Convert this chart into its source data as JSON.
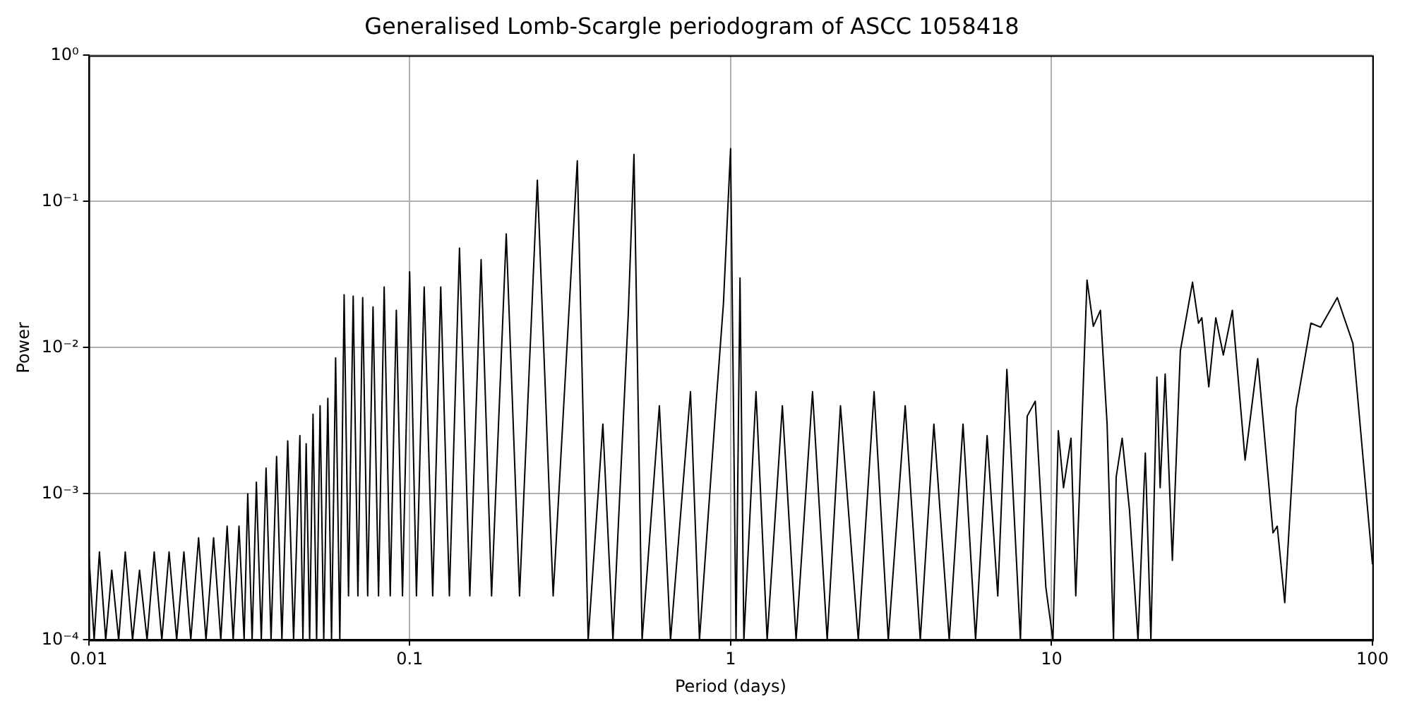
{
  "chart_data": {
    "type": "line",
    "title": "Generalised Lomb-Scargle periodogram of ASCC 1058418",
    "xlabel": "Period (days)",
    "ylabel": "Power",
    "log": "xy",
    "grid": true,
    "legend": false,
    "marker": "none",
    "line_style": "solid",
    "xlim": [
      0.01,
      100
    ],
    "xticks": [
      0.01,
      0.1,
      1,
      10,
      100
    ],
    "ylim": [
      0.0001,
      1
    ],
    "yticks": [
      {
        "value": 0.0001,
        "label": "10⁻⁴"
      },
      {
        "value": 0.001,
        "label": "10⁻³"
      },
      {
        "value": 0.01,
        "label": "10⁻²"
      },
      {
        "value": 0.1,
        "label": "10⁻¹"
      },
      {
        "value": 1,
        "label": "10⁰"
      }
    ],
    "series": [
      {
        "color": "#000000",
        "x": [
          0.01,
          0.0104,
          0.0108,
          0.0113,
          0.0118,
          0.0124,
          0.013,
          0.0137,
          0.0144,
          0.0152,
          0.016,
          0.0169,
          0.0178,
          0.0188,
          0.0198,
          0.0208,
          0.022,
          0.0232,
          0.0245,
          0.0258,
          0.027,
          0.0282,
          0.0294,
          0.0305,
          0.0313,
          0.0323,
          0.0333,
          0.0345,
          0.0357,
          0.037,
          0.0385,
          0.04,
          0.0417,
          0.0435,
          0.0455,
          0.0465,
          0.0476,
          0.0488,
          0.05,
          0.0513,
          0.0526,
          0.054,
          0.0556,
          0.0571,
          0.0588,
          0.0606,
          0.0625,
          0.0645,
          0.0667,
          0.069,
          0.0714,
          0.074,
          0.0769,
          0.08,
          0.0833,
          0.087,
          0.0909,
          0.095,
          0.1,
          0.105,
          0.111,
          0.118,
          0.125,
          0.133,
          0.143,
          0.154,
          0.167,
          0.18,
          0.2,
          0.22,
          0.25,
          0.28,
          0.333,
          0.36,
          0.4,
          0.43,
          0.48,
          0.5,
          0.53,
          0.6,
          0.65,
          0.75,
          0.8,
          0.9,
          0.95,
          1,
          1.04,
          1.07,
          1.1,
          1.2,
          1.3,
          1.45,
          1.6,
          1.8,
          2,
          2.2,
          2.5,
          2.8,
          3.1,
          3.5,
          3.9,
          4.3,
          4.8,
          5.3,
          5.8,
          6.3,
          6.8,
          7.26,
          8.0,
          8.4,
          8.9,
          9.6,
          10.1,
          10.5,
          10.9,
          11.5,
          11.9,
          12.9,
          13.5,
          14.2,
          14.9,
          15.6,
          15.9,
          16.6,
          17.5,
          18.6,
          19.6,
          20.4,
          21.3,
          21.8,
          22.6,
          23.8,
          25.2,
          27.5,
          28.7,
          29.4,
          30.9,
          32.5,
          34.3,
          36.6,
          40.1,
          43.9,
          49.0,
          50.5,
          53.3,
          57.8,
          64.3,
          68.9,
          77.7,
          86.9,
          100
        ],
        "values": [
          0.0004,
          0.0001,
          0.0004,
          0.0001,
          0.0003,
          0.0001,
          0.0004,
          0.0001,
          0.0003,
          0.0001,
          0.0004,
          0.0001,
          0.0004,
          0.0001,
          0.0004,
          0.0001,
          0.0005,
          0.0001,
          0.0005,
          0.0001,
          0.0006,
          0.0001,
          0.0006,
          0.0001,
          0.001,
          0.0001,
          0.0012,
          0.0001,
          0.0015,
          0.0001,
          0.0018,
          0.0001,
          0.0023,
          0.0001,
          0.0025,
          0.0001,
          0.0022,
          0.0001,
          0.0035,
          0.0001,
          0.004,
          0.0001,
          0.0045,
          0.0001,
          0.0085,
          0.0001,
          0.023,
          0.0002,
          0.0225,
          0.0002,
          0.022,
          0.0002,
          0.019,
          0.0002,
          0.026,
          0.0002,
          0.018,
          0.0002,
          0.033,
          0.0002,
          0.026,
          0.0002,
          0.026,
          0.0002,
          0.048,
          0.0002,
          0.04,
          0.0002,
          0.06,
          0.0002,
          0.14,
          0.0002,
          0.19,
          0.0001,
          0.003,
          0.0001,
          0.017,
          0.21,
          0.0001,
          0.004,
          0.0001,
          0.005,
          0.0001,
          0.004,
          0.02,
          0.23,
          0.0001,
          0.03,
          0.0001,
          0.005,
          0.0001,
          0.004,
          0.0001,
          0.005,
          0.0001,
          0.004,
          0.0001,
          0.005,
          0.0001,
          0.004,
          0.0001,
          0.003,
          0.0001,
          0.003,
          0.0001,
          0.0025,
          0.0002,
          0.0071,
          0.0001,
          0.0034,
          0.0043,
          0.00023,
          0.0001,
          0.0027,
          0.0011,
          0.0024,
          0.0002,
          0.029,
          0.014,
          0.018,
          0.003,
          0.0001,
          0.0013,
          0.0024,
          0.00077,
          0.0001,
          0.0019,
          0.0001,
          0.0063,
          0.0011,
          0.0066,
          0.00035,
          0.0095,
          0.028,
          0.0147,
          0.016,
          0.0054,
          0.016,
          0.0089,
          0.018,
          0.0017,
          0.0084,
          0.00054,
          0.0006,
          0.00018,
          0.0038,
          0.0147,
          0.0138,
          0.022,
          0.0107,
          0.00033
        ]
      }
    ]
  }
}
